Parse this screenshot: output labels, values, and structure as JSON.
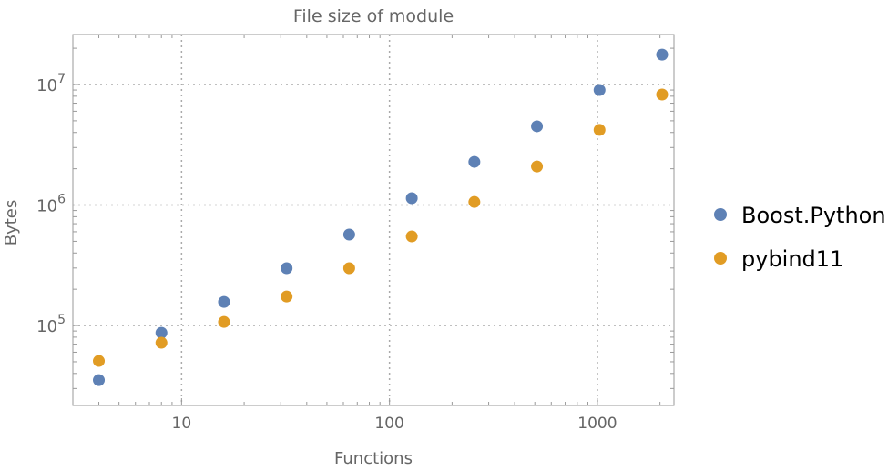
{
  "chart_data": {
    "type": "scatter",
    "title": "File size of module",
    "xlabel": "Functions",
    "ylabel": "Bytes",
    "x_scale": "log",
    "y_scale": "log",
    "xlim": [
      3.0,
      2335
    ],
    "ylim": [
      21700,
      26000000
    ],
    "grid": true,
    "legend_position": "right",
    "x_ticks": [
      {
        "value": 10,
        "label": "10"
      },
      {
        "value": 100,
        "label": "100"
      },
      {
        "value": 1000,
        "label": "1000"
      }
    ],
    "y_ticks": [
      {
        "value": 100000,
        "base": "10",
        "exp": "5"
      },
      {
        "value": 1000000,
        "base": "10",
        "exp": "6"
      },
      {
        "value": 10000000,
        "base": "10",
        "exp": "7"
      }
    ],
    "x": [
      4,
      8,
      16,
      32,
      64,
      128,
      256,
      512,
      1024,
      2048
    ],
    "series": [
      {
        "name": "Boost.Python",
        "color": "#5e81b5",
        "values": [
          35200,
          87000,
          157000,
          299000,
          569000,
          1140000,
          2280000,
          4500000,
          9000000,
          17700000
        ]
      },
      {
        "name": "pybind11",
        "color": "#e19c24",
        "values": [
          50800,
          71900,
          107000,
          174000,
          299000,
          549000,
          1060000,
          2090000,
          4200000,
          8260000
        ]
      }
    ]
  }
}
